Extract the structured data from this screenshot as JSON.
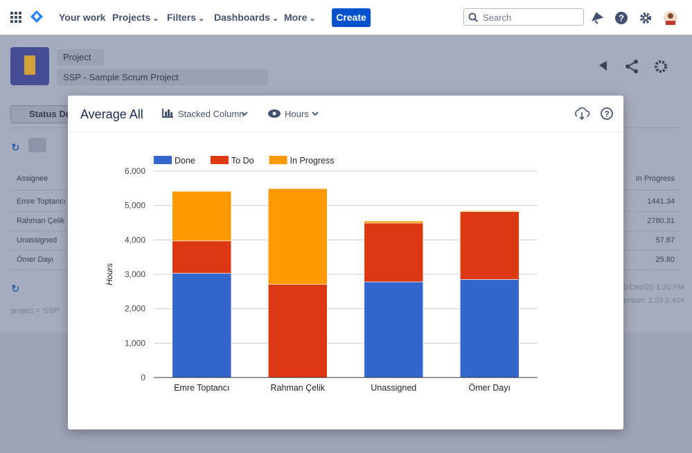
{
  "nav": {
    "items": [
      "Your work",
      "Projects",
      "Filters",
      "Dashboards",
      "More"
    ],
    "create": "Create",
    "search": "Search"
  },
  "project": {
    "selector": "Project",
    "name": "SSP - Sample Scrum Project"
  },
  "report": {
    "tab": "Status Du",
    "table": {
      "headers": [
        "Assignee",
        "In Progress"
      ],
      "rows": [
        [
          "Emre Toptancı",
          "1441.34"
        ],
        [
          "Rahman Çelik",
          "2780.31"
        ],
        [
          "Unassigned",
          "57.87"
        ],
        [
          "Ömer Dayı",
          "25.80"
        ]
      ]
    },
    "query": "project = 'SSP'",
    "timestamp": "0/Dec/20 1:20 PM",
    "version": "ersion: 1.29.0.424"
  },
  "modal": {
    "title": "Average All",
    "chart_type": "Stacked Column",
    "unit": "Hours"
  },
  "chart_data": {
    "type": "bar",
    "stacked": true,
    "y_label": "Hours",
    "categories": [
      "Emre Toptancı",
      "Rahman Çelik",
      "Unassigned",
      "Ömer Dayı"
    ],
    "series": [
      {
        "name": "Done",
        "color": "#3366cc",
        "values": [
          3030,
          0,
          2780,
          2850
        ]
      },
      {
        "name": "To Do",
        "color": "#dc3912",
        "values": [
          940,
          2710,
          1710,
          1970
        ]
      },
      {
        "name": "In Progress",
        "color": "#ff9900",
        "values": [
          1441.34,
          2780.31,
          57.87,
          25.8
        ]
      }
    ],
    "ylim": [
      0,
      6000
    ],
    "yticks": [
      0,
      {
        "value": 1000,
        "label": "1,000"
      },
      {
        "value": 2000,
        "label": "2,000"
      },
      {
        "value": 3000,
        "label": "3,000"
      },
      {
        "value": 4000,
        "label": "4,000"
      },
      {
        "value": 5000,
        "label": "5,000"
      },
      {
        "value": 6000,
        "label": "6,000"
      }
    ],
    "grid": true,
    "legend": "top"
  }
}
